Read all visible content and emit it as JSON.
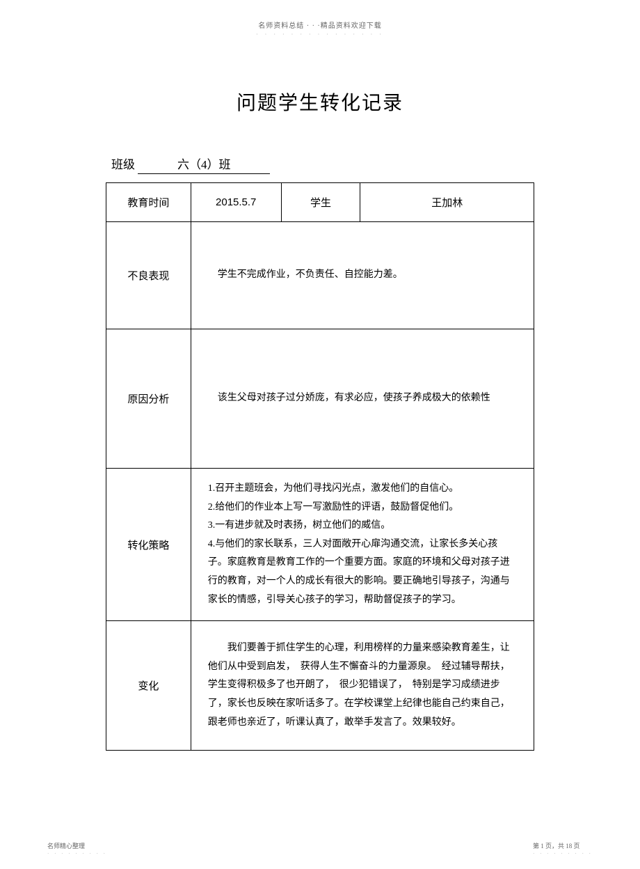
{
  "header": {
    "text": "名师资料总结 · · ·精品资料欢迎下载",
    "dots": "· · · · · · · · · · · · · · ·"
  },
  "title": "问题学生转化记录",
  "class": {
    "label": "班级",
    "value": "六（4）班"
  },
  "table": {
    "row1": {
      "time_label": "教育时间",
      "date": "2015.5.7",
      "student_label": "学生",
      "student_name": "王加林"
    },
    "row2": {
      "label": "不良表现",
      "content": "学生不完成作业，不负责任、自控能力差。"
    },
    "row3": {
      "label": "原因分析",
      "content": "该生父母对孩子过分娇庞，有求必应，使孩子养成极大的依赖性"
    },
    "row4": {
      "label": "转化策略",
      "line1": "1.召开主题班会，为他们寻找闪光点，激发他们的自信心。",
      "line2": "2.给他们的作业本上写一写激励性的评语，鼓励督促他们。",
      "line3": "3.一有进步就及时表扬，树立他们的威信。",
      "line4": "4.与他们的家长联系，三人对面敞开心扉沟通交流，让家长多关心孩子。家庭教育是教育工作的一个重要方面。家庭的环境和父母对孩子进行的教育，对一个人的成长有很大的影响。要正确地引导孩子，沟通与家长的情感，引导关心孩子的学习，帮助督促孩子的学习。"
    },
    "row5": {
      "label": "变化",
      "content": "我们要善于抓住学生的心理，利用榜样的力量来感染教育差生，让他们从中受到启发，　获得人生不懈奋斗的力量源泉。　经过辅导帮扶，学生变得积极多了也开朗了，　很少犯错误了，　特别是学习成绩进步了，家长也反映在家听话多了。在学校课堂上纪律也能自己约束自己，跟老师也亲近了，听课认真了，敢举手发言了。效果较好。"
    }
  },
  "footer": {
    "left": "名师精心整理",
    "left_dots": "· · · · · · · · ·",
    "right": "第 1 页，共 18 页",
    "right_dots": "· · · · · · · · ·"
  }
}
